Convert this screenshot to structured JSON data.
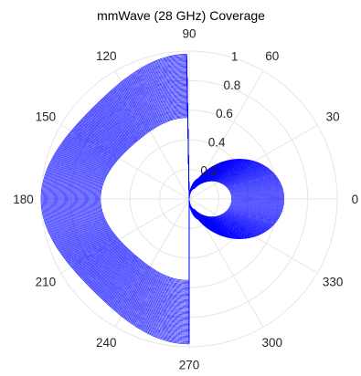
{
  "chart_data": {
    "type": "line",
    "subtype": "polar",
    "title": "mmWave (28 GHz) Coverage",
    "angle_ticks": [
      "0",
      "30",
      "60",
      "90",
      "120",
      "150",
      "180",
      "210",
      "240",
      "270",
      "300",
      "330"
    ],
    "radial_ticks": [
      "0.2",
      "0.4",
      "0.6",
      "0.8",
      "1"
    ],
    "rlim": [
      0,
      1
    ],
    "grid": true,
    "series_color": "#0000FF",
    "pattern": {
      "main_lobe_peak_deg": 0,
      "main_lobe_max_extent": 0.64,
      "back_lobe_max_extent": 1.0,
      "back_lobe_edge_extent_at_90_270": 0.98,
      "inner_lobe_extent": 0.16,
      "trace_count": 60
    }
  }
}
